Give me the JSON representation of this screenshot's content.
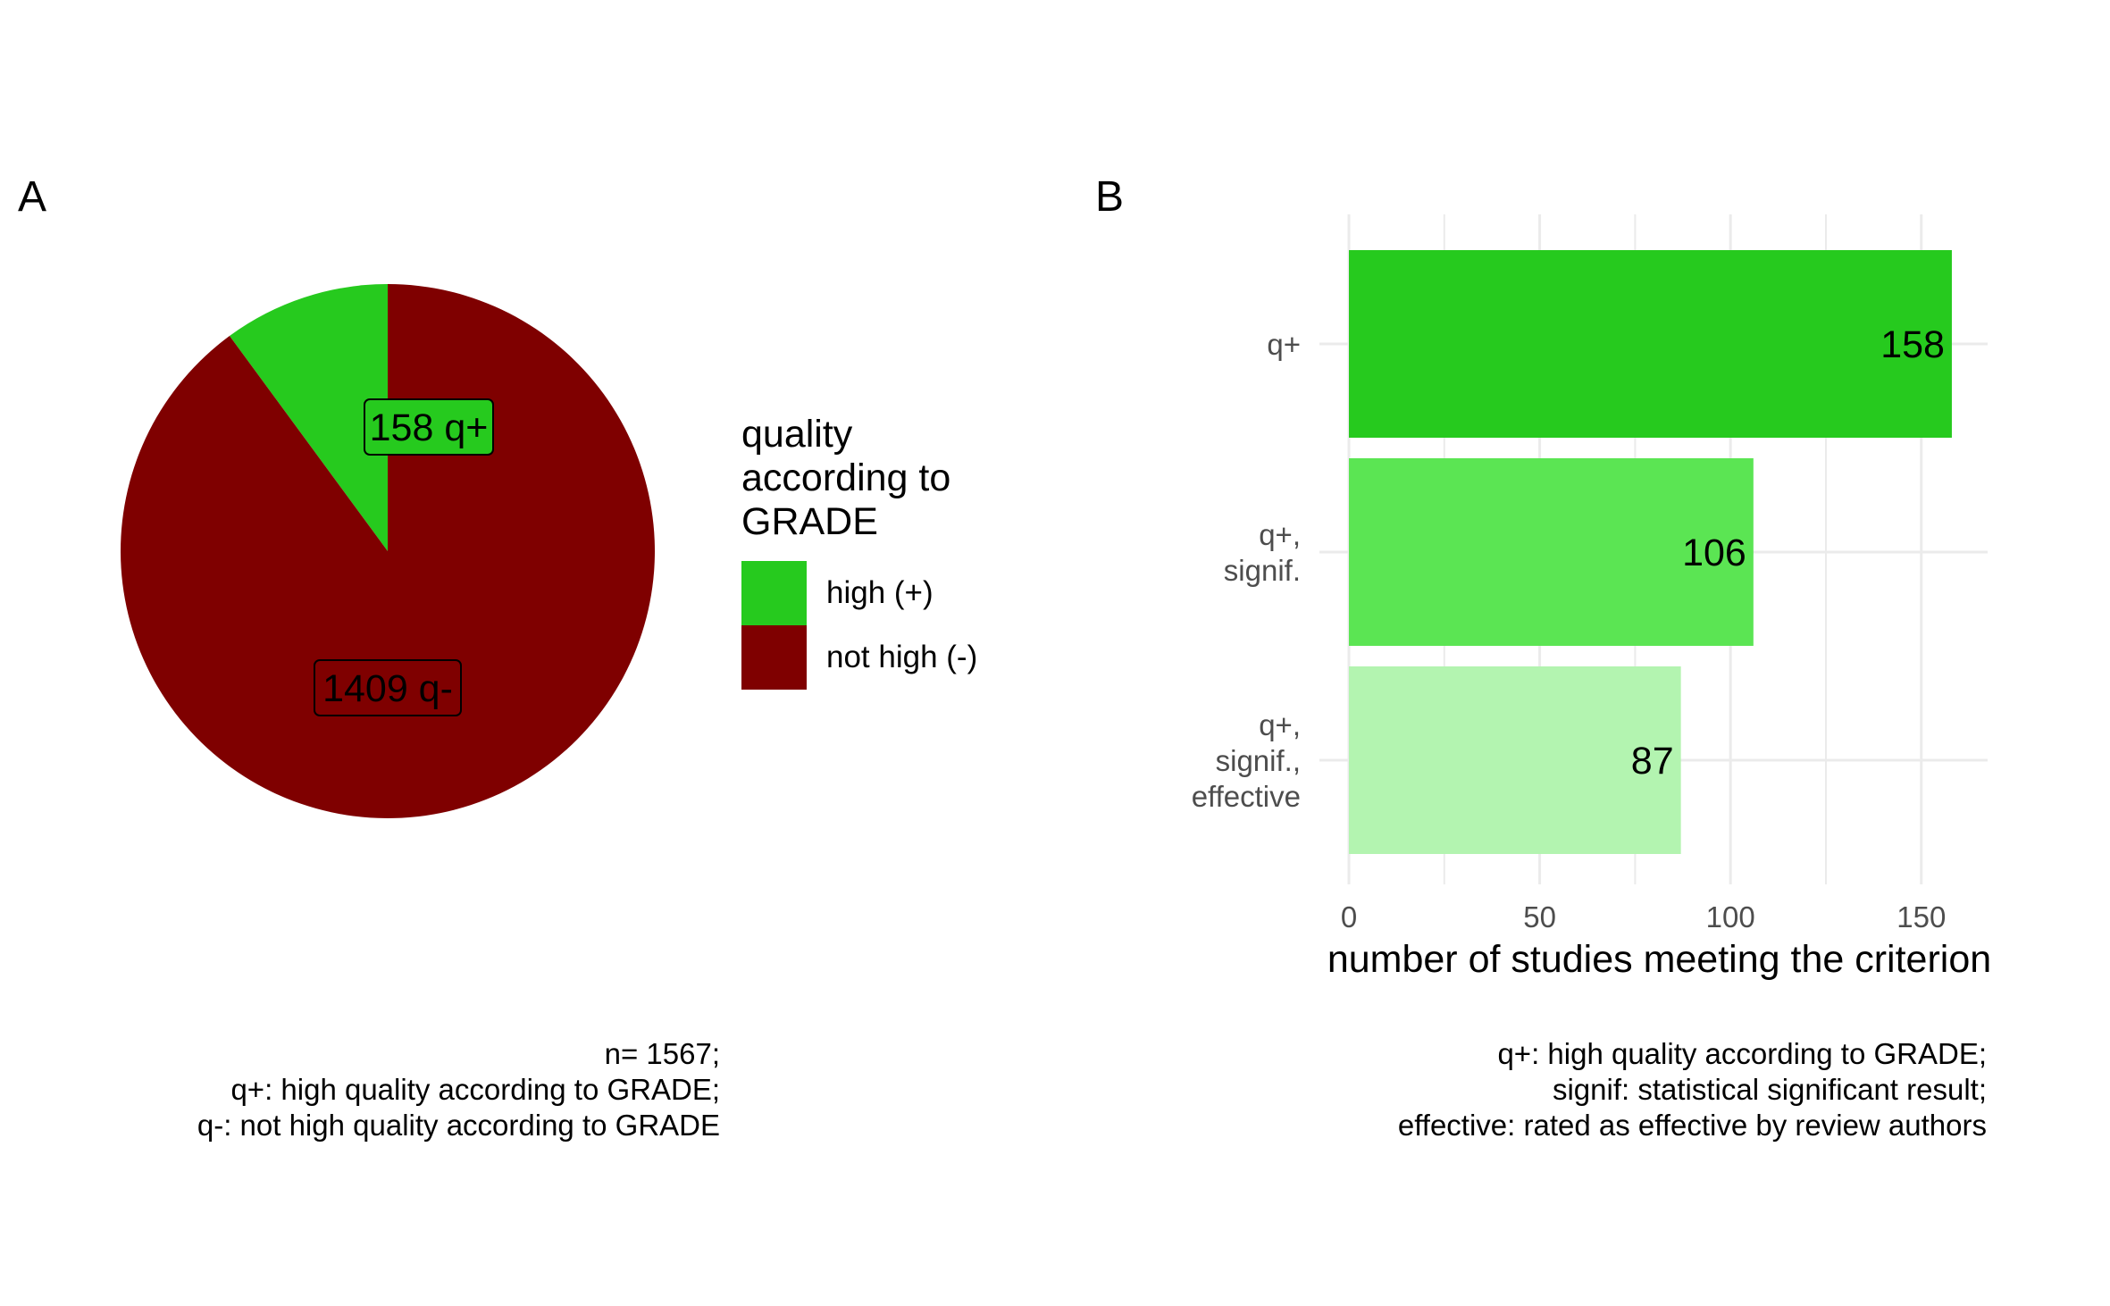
{
  "panel_a": {
    "tag": "A",
    "caption": [
      "n= 1567;",
      "q+: high quality according to GRADE;",
      "q-: not high quality according to GRADE"
    ]
  },
  "panel_b": {
    "tag": "B",
    "caption": [
      "q+: high quality according to GRADE;",
      "signif: statistical significant result;",
      "effective: rated as effective by review authors"
    ]
  },
  "chart_data": [
    {
      "type": "pie",
      "legend_title": [
        "quality",
        "according to",
        "GRADE"
      ],
      "legend_position": "right",
      "slices": [
        {
          "name": "high (+)",
          "value": 158,
          "label": "158 q+",
          "color": "#26CA1E"
        },
        {
          "name": "not high (-)",
          "value": 1409,
          "label": "1409 q-",
          "color": "#7F0000"
        }
      ]
    },
    {
      "type": "bar",
      "orientation": "horizontal",
      "categories": [
        [
          "q+"
        ],
        [
          "q+,",
          "signif."
        ],
        [
          "q+,",
          "signif.,",
          "effective"
        ]
      ],
      "values": [
        158,
        106,
        87
      ],
      "data_labels": [
        "158",
        "106",
        "87"
      ],
      "colors": [
        "#26CA1E",
        "#5BE553",
        "#B3F4B0"
      ],
      "xlabel": "number of studies meeting the criterion",
      "xlim": [
        0,
        166
      ],
      "xticks": [
        0,
        50,
        100,
        150
      ],
      "grid": true
    }
  ]
}
